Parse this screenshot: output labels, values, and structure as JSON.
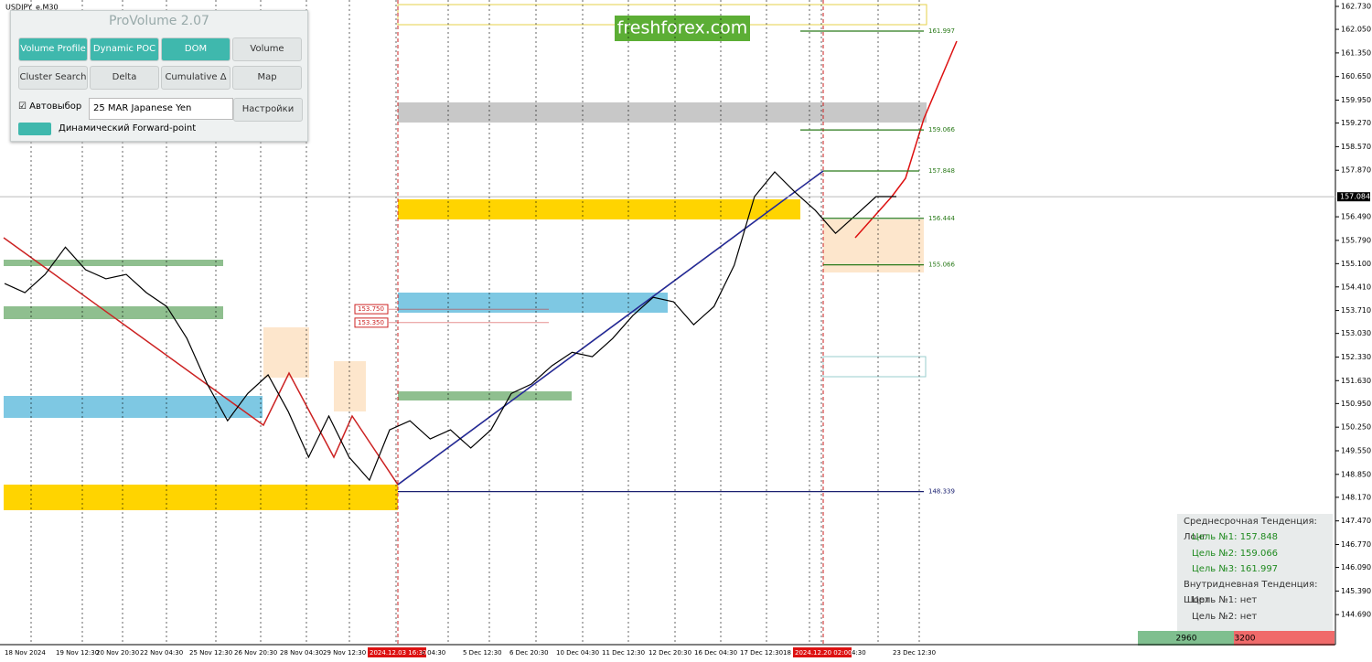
{
  "symbol": "USDJPY_e,M30",
  "watermark": "freshforex.com",
  "panel": {
    "title": "ProVolume 2.07",
    "buttons": [
      "Volume Profile",
      "Dynamic POC",
      "DOM",
      "Volume",
      "Cluster Search",
      "Delta",
      "Cumulative Δ",
      "Map"
    ],
    "auto_label": "Автовыбор",
    "instrument": "25 MAR Japanese Yen",
    "settings": "Настройки",
    "forward_point": "Динамический Forward-point"
  },
  "chart": {
    "ylim": [
      143.8,
      162.92
    ],
    "yticks": [
      {
        "value": 162.73,
        "label": "162.730"
      },
      {
        "value": 162.05,
        "label": "162.050"
      },
      {
        "value": 161.35,
        "label": "161.350"
      },
      {
        "value": 160.65,
        "label": "160.650"
      },
      {
        "value": 159.95,
        "label": "159.950"
      },
      {
        "value": 159.27,
        "label": "159.270"
      },
      {
        "value": 158.57,
        "label": "158.570"
      },
      {
        "value": 157.87,
        "label": "157.870"
      },
      {
        "value": 156.49,
        "label": "156.490"
      },
      {
        "value": 155.79,
        "label": "155.790"
      },
      {
        "value": 155.1,
        "label": "155.100"
      },
      {
        "value": 154.41,
        "label": "154.410"
      },
      {
        "value": 153.71,
        "label": "153.710"
      },
      {
        "value": 153.03,
        "label": "153.030"
      },
      {
        "value": 152.33,
        "label": "152.330"
      },
      {
        "value": 151.63,
        "label": "151.630"
      },
      {
        "value": 150.95,
        "label": "150.950"
      },
      {
        "value": 150.25,
        "label": "150.250"
      },
      {
        "value": 149.55,
        "label": "149.550"
      },
      {
        "value": 148.85,
        "label": "148.850"
      },
      {
        "value": 148.17,
        "label": "148.170"
      },
      {
        "value": 147.47,
        "label": "147.470"
      },
      {
        "value": 146.77,
        "label": "146.770"
      },
      {
        "value": 146.09,
        "label": "146.090"
      },
      {
        "value": 145.39,
        "label": "145.390"
      },
      {
        "value": 144.69,
        "label": "144.690"
      }
    ],
    "current_price": 157.084,
    "prices": [
      154.51,
      154.24,
      154.78,
      155.59,
      154.92,
      154.65,
      154.78,
      154.24,
      153.83,
      152.88,
      151.53,
      150.44,
      151.25,
      151.8,
      150.71,
      149.36,
      150.58,
      149.36,
      148.68,
      150.17,
      150.44,
      149.9,
      150.17,
      149.63,
      150.17,
      151.25,
      151.53,
      152.07,
      152.47,
      152.34,
      152.88,
      153.56,
      154.1,
      153.97,
      153.29,
      153.83,
      155.05,
      157.09,
      157.82,
      157.22,
      156.68,
      156,
      156.54,
      157.09,
      157.09
    ],
    "levels": [
      161.997,
      159.066,
      157.848,
      156.444,
      155.066,
      148.339
    ],
    "red_levels": [
      {
        "value": 153.75,
        "label": "153.750"
      },
      {
        "value": 153.35,
        "label": "153.350"
      }
    ],
    "time_labels": [
      "18 Nov 2024",
      "19 Nov 12:30",
      "20 Nov 20:30",
      "22 Nov 04:30",
      "25 Nov 12:30",
      "26 Nov 20:30",
      "28 Nov 04:30",
      "29 Nov 12:30",
      "2024.12.03 16:30",
      "c 04:30",
      "5 Dec 12:30",
      "6 Dec 20:30",
      "10 Dec 04:30",
      "11 Dec 12:30",
      "12 Dec 20:30",
      "16 Dec 04:30",
      "17 Dec 12:30",
      "18 D",
      "2024.12.20 02:00",
      "4:30",
      "23 Dec 12:30"
    ]
  },
  "info": {
    "lines": [
      "Среднесрочная Тенденция: Лонг",
      "Цель №1: 157.848",
      "Цель №2: 159.066",
      "Цель №3: 161.997",
      "Внутридневная Тенденция: Шорт",
      "Цель №1: нет",
      "Цель №2: нет"
    ],
    "buy": "2960",
    "sell": "3200"
  }
}
